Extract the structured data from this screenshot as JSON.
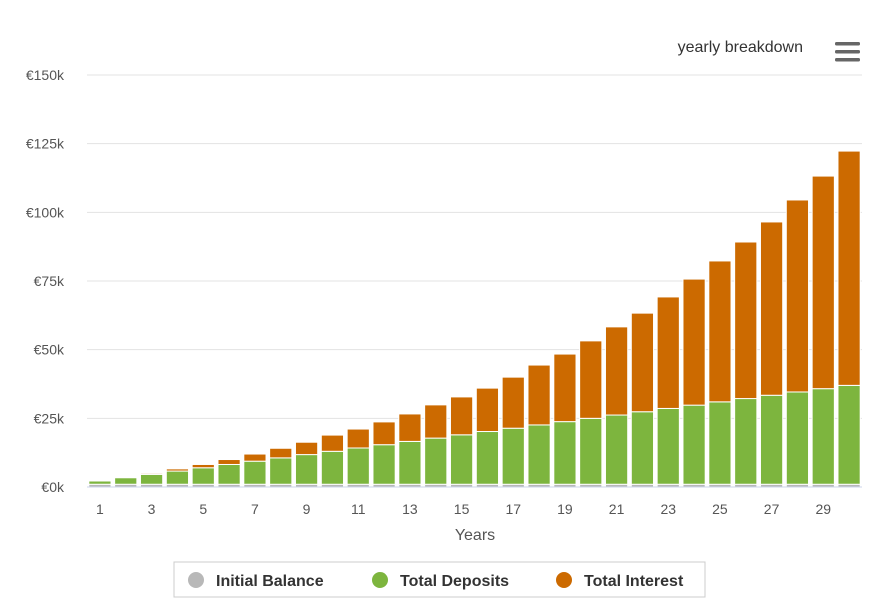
{
  "chart_data": {
    "type": "stacked_bar",
    "menu_label": "yearly breakdown",
    "x_label": "Years",
    "categories": [
      "1",
      null,
      "3",
      null,
      "5",
      null,
      "7",
      null,
      "9",
      null,
      "11",
      null,
      "13",
      null,
      "15",
      null,
      "17",
      null,
      "19",
      null,
      "21",
      null,
      "23",
      null,
      "25",
      null,
      "27",
      null,
      "29",
      null
    ],
    "series": [
      {
        "name": "Initial Balance",
        "color": "#b8b8b8",
        "values": [
          1000,
          1000,
          1000,
          1000,
          1000,
          1000,
          1000,
          1000,
          1000,
          1000,
          1000,
          1000,
          1000,
          1000,
          1000,
          1000,
          1000,
          1000,
          1000,
          1000,
          1000,
          1000,
          1000,
          1000,
          1000,
          1000,
          1000,
          1000,
          1000,
          1000
        ]
      },
      {
        "name": "Total Deposits",
        "color": "#7db53e",
        "values": [
          1200,
          2400,
          3600,
          4800,
          6000,
          7200,
          8400,
          9600,
          10800,
          12000,
          13200,
          14400,
          15600,
          16800,
          18000,
          19200,
          20400,
          21600,
          22800,
          24000,
          25200,
          26400,
          27600,
          28800,
          30000,
          31200,
          32400,
          33600,
          34800,
          36000
        ]
      },
      {
        "name": "Total Interest",
        "color": "#cc6a00",
        "values": [
          50,
          200,
          400,
          800,
          1200,
          1800,
          2600,
          3500,
          4500,
          5900,
          6900,
          8300,
          10000,
          12100,
          13800,
          15800,
          18600,
          21800,
          24600,
          28200,
          32100,
          35900,
          40600,
          45900,
          51300,
          57000,
          63100,
          69900,
          77400,
          85300
        ]
      }
    ],
    "ylim": [
      0,
      150000
    ],
    "yticks": [
      {
        "value": 0,
        "label": "€0k"
      },
      {
        "value": 25000,
        "label": "€25k"
      },
      {
        "value": 50000,
        "label": "€50k"
      },
      {
        "value": 75000,
        "label": "€75k"
      },
      {
        "value": 100000,
        "label": "€100k"
      },
      {
        "value": 125000,
        "label": "€125k"
      },
      {
        "value": 150000,
        "label": "€150k"
      }
    ],
    "grid": true
  }
}
